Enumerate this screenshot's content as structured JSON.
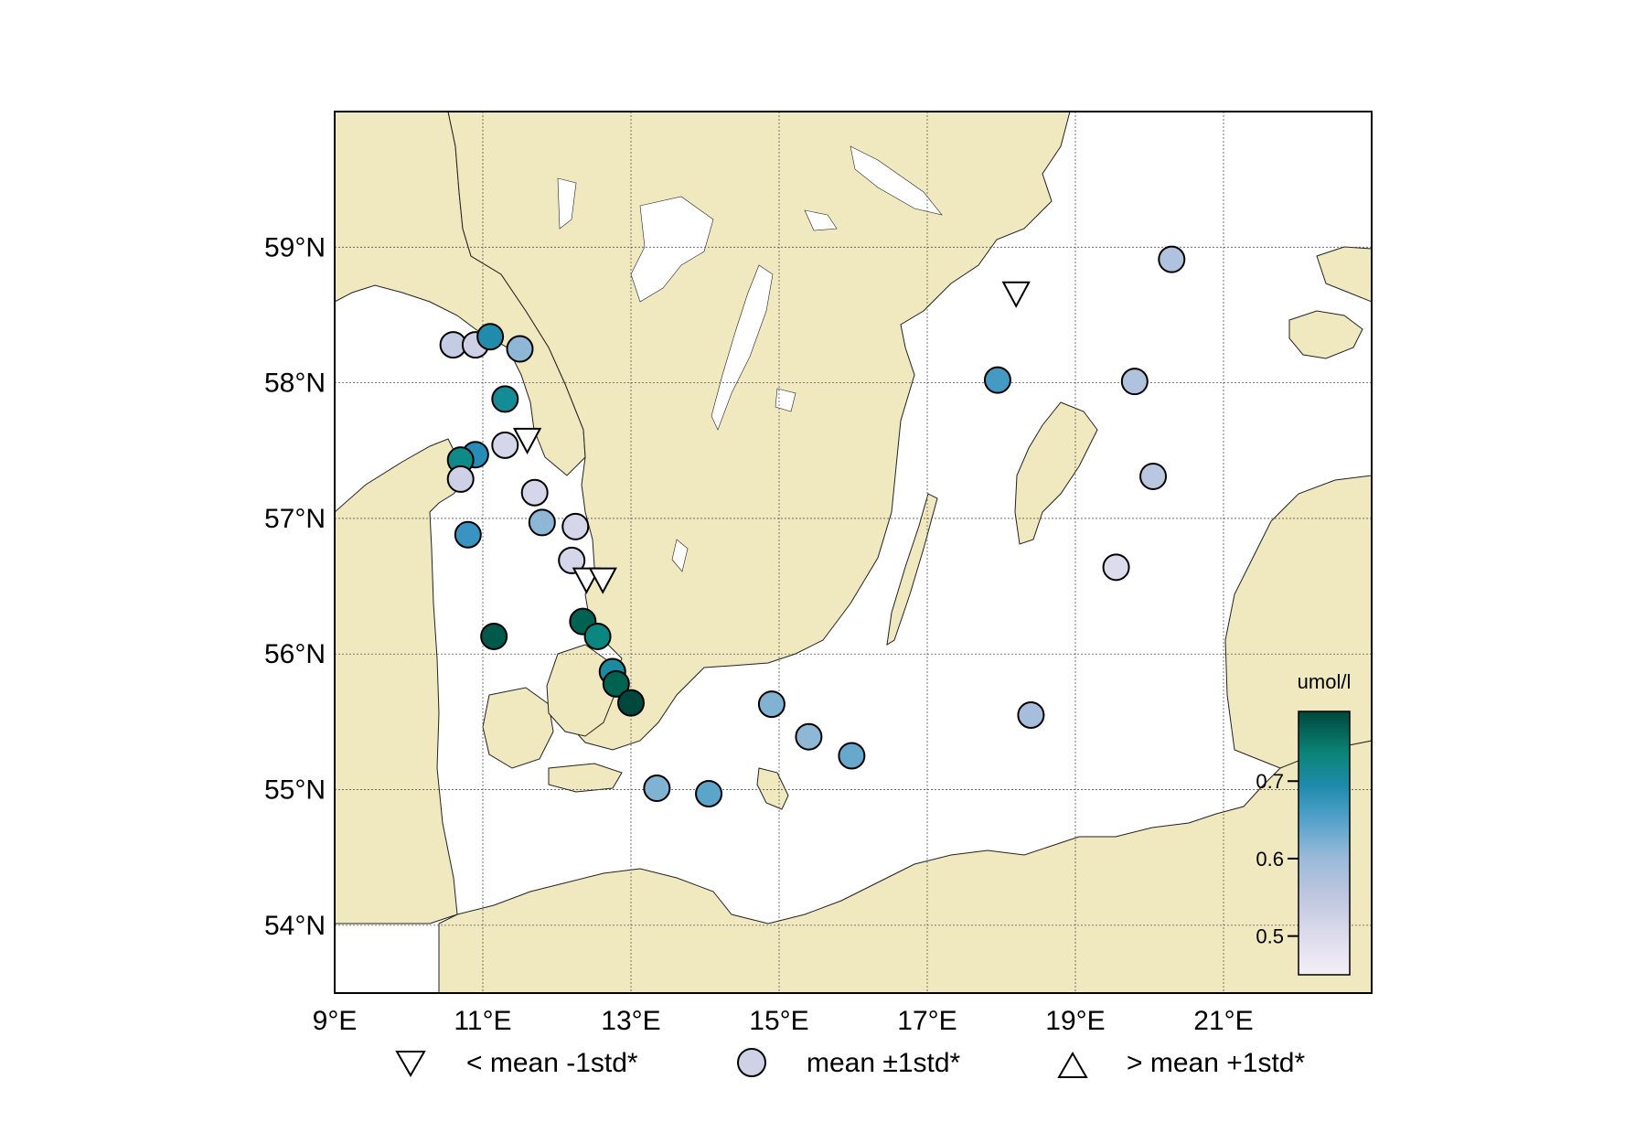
{
  "map": {
    "lon_range": [
      9,
      23
    ],
    "lat_range": [
      53.5,
      60
    ],
    "lon_ticks": [
      9,
      11,
      13,
      15,
      17,
      19,
      21
    ],
    "lat_ticks": [
      54,
      55,
      56,
      57,
      58,
      59
    ],
    "lon_labels": [
      "9°E",
      "11°E",
      "13°E",
      "15°E",
      "17°E",
      "19°E",
      "21°E"
    ],
    "lat_labels": [
      "54°N",
      "55°N",
      "56°N",
      "57°N",
      "58°N",
      "59°N"
    ],
    "land_color": "#f0e8bf",
    "water_color": "#ffffff",
    "grid": true
  },
  "colorbar": {
    "title": "umol/l",
    "range": [
      0.45,
      0.79
    ],
    "ticks": [
      0.5,
      0.6,
      0.7
    ],
    "tick_labels": [
      "0.5",
      "0.6",
      "0.7"
    ],
    "colors": [
      "#f3eff6",
      "#cfd1e6",
      "#9fbbd9",
      "#5ea7ca",
      "#2b8cbe",
      "#0d8a86",
      "#00735e",
      "#00483d"
    ]
  },
  "legend": {
    "below": "< mean -1std*",
    "within": "mean ±1std*",
    "above": "> mean +1std*"
  },
  "stations": [
    {
      "lon": 10.6,
      "lat": 58.28,
      "marker": "circle",
      "value": 0.51
    },
    {
      "lon": 10.9,
      "lat": 58.28,
      "marker": "circle",
      "value": 0.5
    },
    {
      "lon": 11.1,
      "lat": 58.34,
      "marker": "circle",
      "value": 0.66
    },
    {
      "lon": 11.5,
      "lat": 58.25,
      "marker": "circle",
      "value": 0.56
    },
    {
      "lon": 11.3,
      "lat": 57.88,
      "marker": "circle",
      "value": 0.68
    },
    {
      "lon": 11.6,
      "lat": 57.58,
      "marker": "triangle-down"
    },
    {
      "lon": 11.3,
      "lat": 57.54,
      "marker": "circle",
      "value": 0.49
    },
    {
      "lon": 10.9,
      "lat": 57.47,
      "marker": "circle",
      "value": 0.65
    },
    {
      "lon": 10.7,
      "lat": 57.43,
      "marker": "circle",
      "value": 0.69
    },
    {
      "lon": 10.7,
      "lat": 57.29,
      "marker": "circle",
      "value": 0.5
    },
    {
      "lon": 11.7,
      "lat": 57.19,
      "marker": "circle",
      "value": 0.49
    },
    {
      "lon": 11.8,
      "lat": 56.97,
      "marker": "circle",
      "value": 0.56
    },
    {
      "lon": 12.25,
      "lat": 56.94,
      "marker": "circle",
      "value": 0.49
    },
    {
      "lon": 10.8,
      "lat": 56.88,
      "marker": "circle",
      "value": 0.63
    },
    {
      "lon": 12.2,
      "lat": 56.69,
      "marker": "circle",
      "value": 0.49
    },
    {
      "lon": 12.4,
      "lat": 56.55,
      "marker": "triangle-down"
    },
    {
      "lon": 12.62,
      "lat": 56.55,
      "marker": "triangle-down"
    },
    {
      "lon": 12.35,
      "lat": 56.24,
      "marker": "circle",
      "value": 0.76
    },
    {
      "lon": 12.55,
      "lat": 56.13,
      "marker": "circle",
      "value": 0.7
    },
    {
      "lon": 11.15,
      "lat": 56.13,
      "marker": "circle",
      "value": 0.77
    },
    {
      "lon": 12.75,
      "lat": 55.87,
      "marker": "circle",
      "value": 0.67
    },
    {
      "lon": 12.8,
      "lat": 55.78,
      "marker": "circle",
      "value": 0.76
    },
    {
      "lon": 13.0,
      "lat": 55.64,
      "marker": "circle",
      "value": 0.79
    },
    {
      "lon": 14.9,
      "lat": 55.63,
      "marker": "circle",
      "value": 0.57
    },
    {
      "lon": 15.4,
      "lat": 55.39,
      "marker": "circle",
      "value": 0.56
    },
    {
      "lon": 15.98,
      "lat": 55.25,
      "marker": "circle",
      "value": 0.59
    },
    {
      "lon": 13.35,
      "lat": 55.01,
      "marker": "circle",
      "value": 0.57
    },
    {
      "lon": 14.05,
      "lat": 54.97,
      "marker": "circle",
      "value": 0.6
    },
    {
      "lon": 17.95,
      "lat": 58.02,
      "marker": "circle",
      "value": 0.62
    },
    {
      "lon": 18.2,
      "lat": 58.66,
      "marker": "triangle-down"
    },
    {
      "lon": 20.3,
      "lat": 58.91,
      "marker": "circle",
      "value": 0.53
    },
    {
      "lon": 19.8,
      "lat": 58.01,
      "marker": "circle",
      "value": 0.53
    },
    {
      "lon": 20.05,
      "lat": 57.31,
      "marker": "circle",
      "value": 0.52
    },
    {
      "lon": 19.55,
      "lat": 56.64,
      "marker": "circle",
      "value": 0.48
    },
    {
      "lon": 18.4,
      "lat": 55.55,
      "marker": "circle",
      "value": 0.54
    }
  ]
}
